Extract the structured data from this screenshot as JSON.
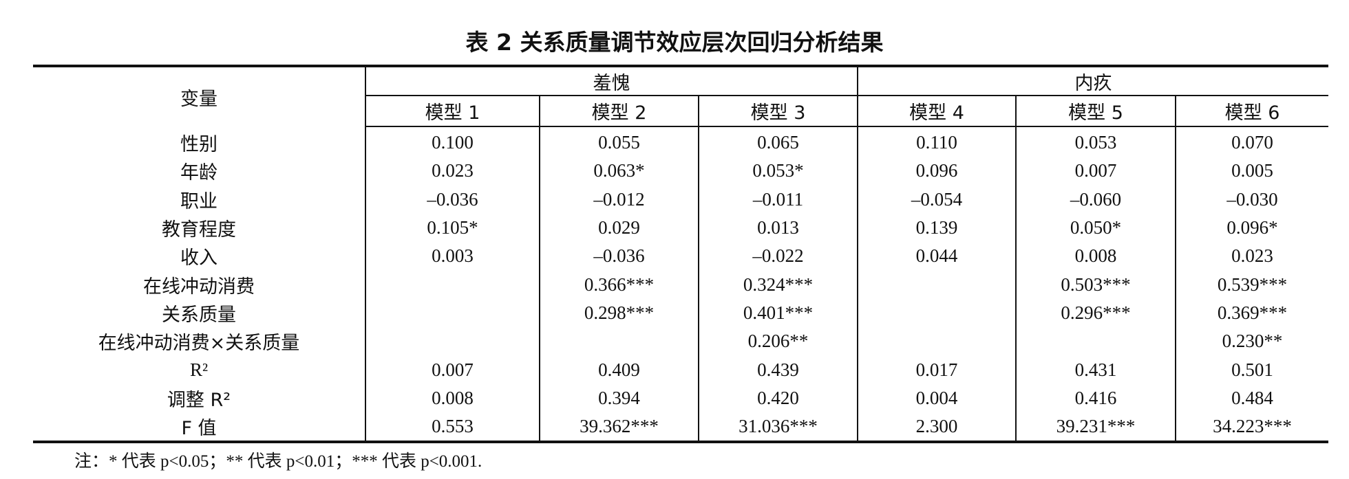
{
  "table": {
    "title": "表 2  关系质量调节效应层次回归分析结果",
    "variable_header": "变量",
    "groups": [
      "羞愧",
      "内疚"
    ],
    "models": [
      "模型 1",
      "模型 2",
      "模型 3",
      "模型 4",
      "模型 5",
      "模型 6"
    ],
    "rows": [
      {
        "label": "性别",
        "values": [
          "0.100",
          "0.055",
          "0.065",
          "0.110",
          "0.053",
          "0.070"
        ]
      },
      {
        "label": "年龄",
        "values": [
          "0.023",
          "0.063*",
          "0.053*",
          "0.096",
          "0.007",
          "0.005"
        ]
      },
      {
        "label": "职业",
        "values": [
          "–0.036",
          "–0.012",
          "–0.011",
          "–0.054",
          "–0.060",
          "–0.030"
        ]
      },
      {
        "label": "教育程度",
        "values": [
          "0.105*",
          "0.029",
          "0.013",
          "0.139",
          "0.050*",
          "0.096*"
        ]
      },
      {
        "label": "收入",
        "values": [
          "0.003",
          "–0.036",
          "–0.022",
          "0.044",
          "0.008",
          "0.023"
        ]
      },
      {
        "label": "在线冲动消费",
        "values": [
          "",
          "0.366***",
          "0.324***",
          "",
          "0.503***",
          "0.539***"
        ]
      },
      {
        "label": "关系质量",
        "values": [
          "",
          "0.298***",
          "0.401***",
          "",
          "0.296***",
          "0.369***"
        ]
      },
      {
        "label": "在线冲动消费×关系质量",
        "values": [
          "",
          "",
          "0.206**",
          "",
          "",
          "0.230**"
        ]
      },
      {
        "label": "R²",
        "values": [
          "0.007",
          "0.409",
          "0.439",
          "0.017",
          "0.431",
          "0.501"
        ]
      },
      {
        "label": "调整 R²",
        "values": [
          "0.008",
          "0.394",
          "0.420",
          "0.004",
          "0.416",
          "0.484"
        ]
      },
      {
        "label": "F 值",
        "values": [
          "0.553",
          "39.362***",
          "31.036***",
          "2.300",
          "39.231***",
          "34.223***"
        ]
      }
    ],
    "note": "注：* 代表 p<0.05；** 代表 p<0.01；*** 代表 p<0.001."
  }
}
